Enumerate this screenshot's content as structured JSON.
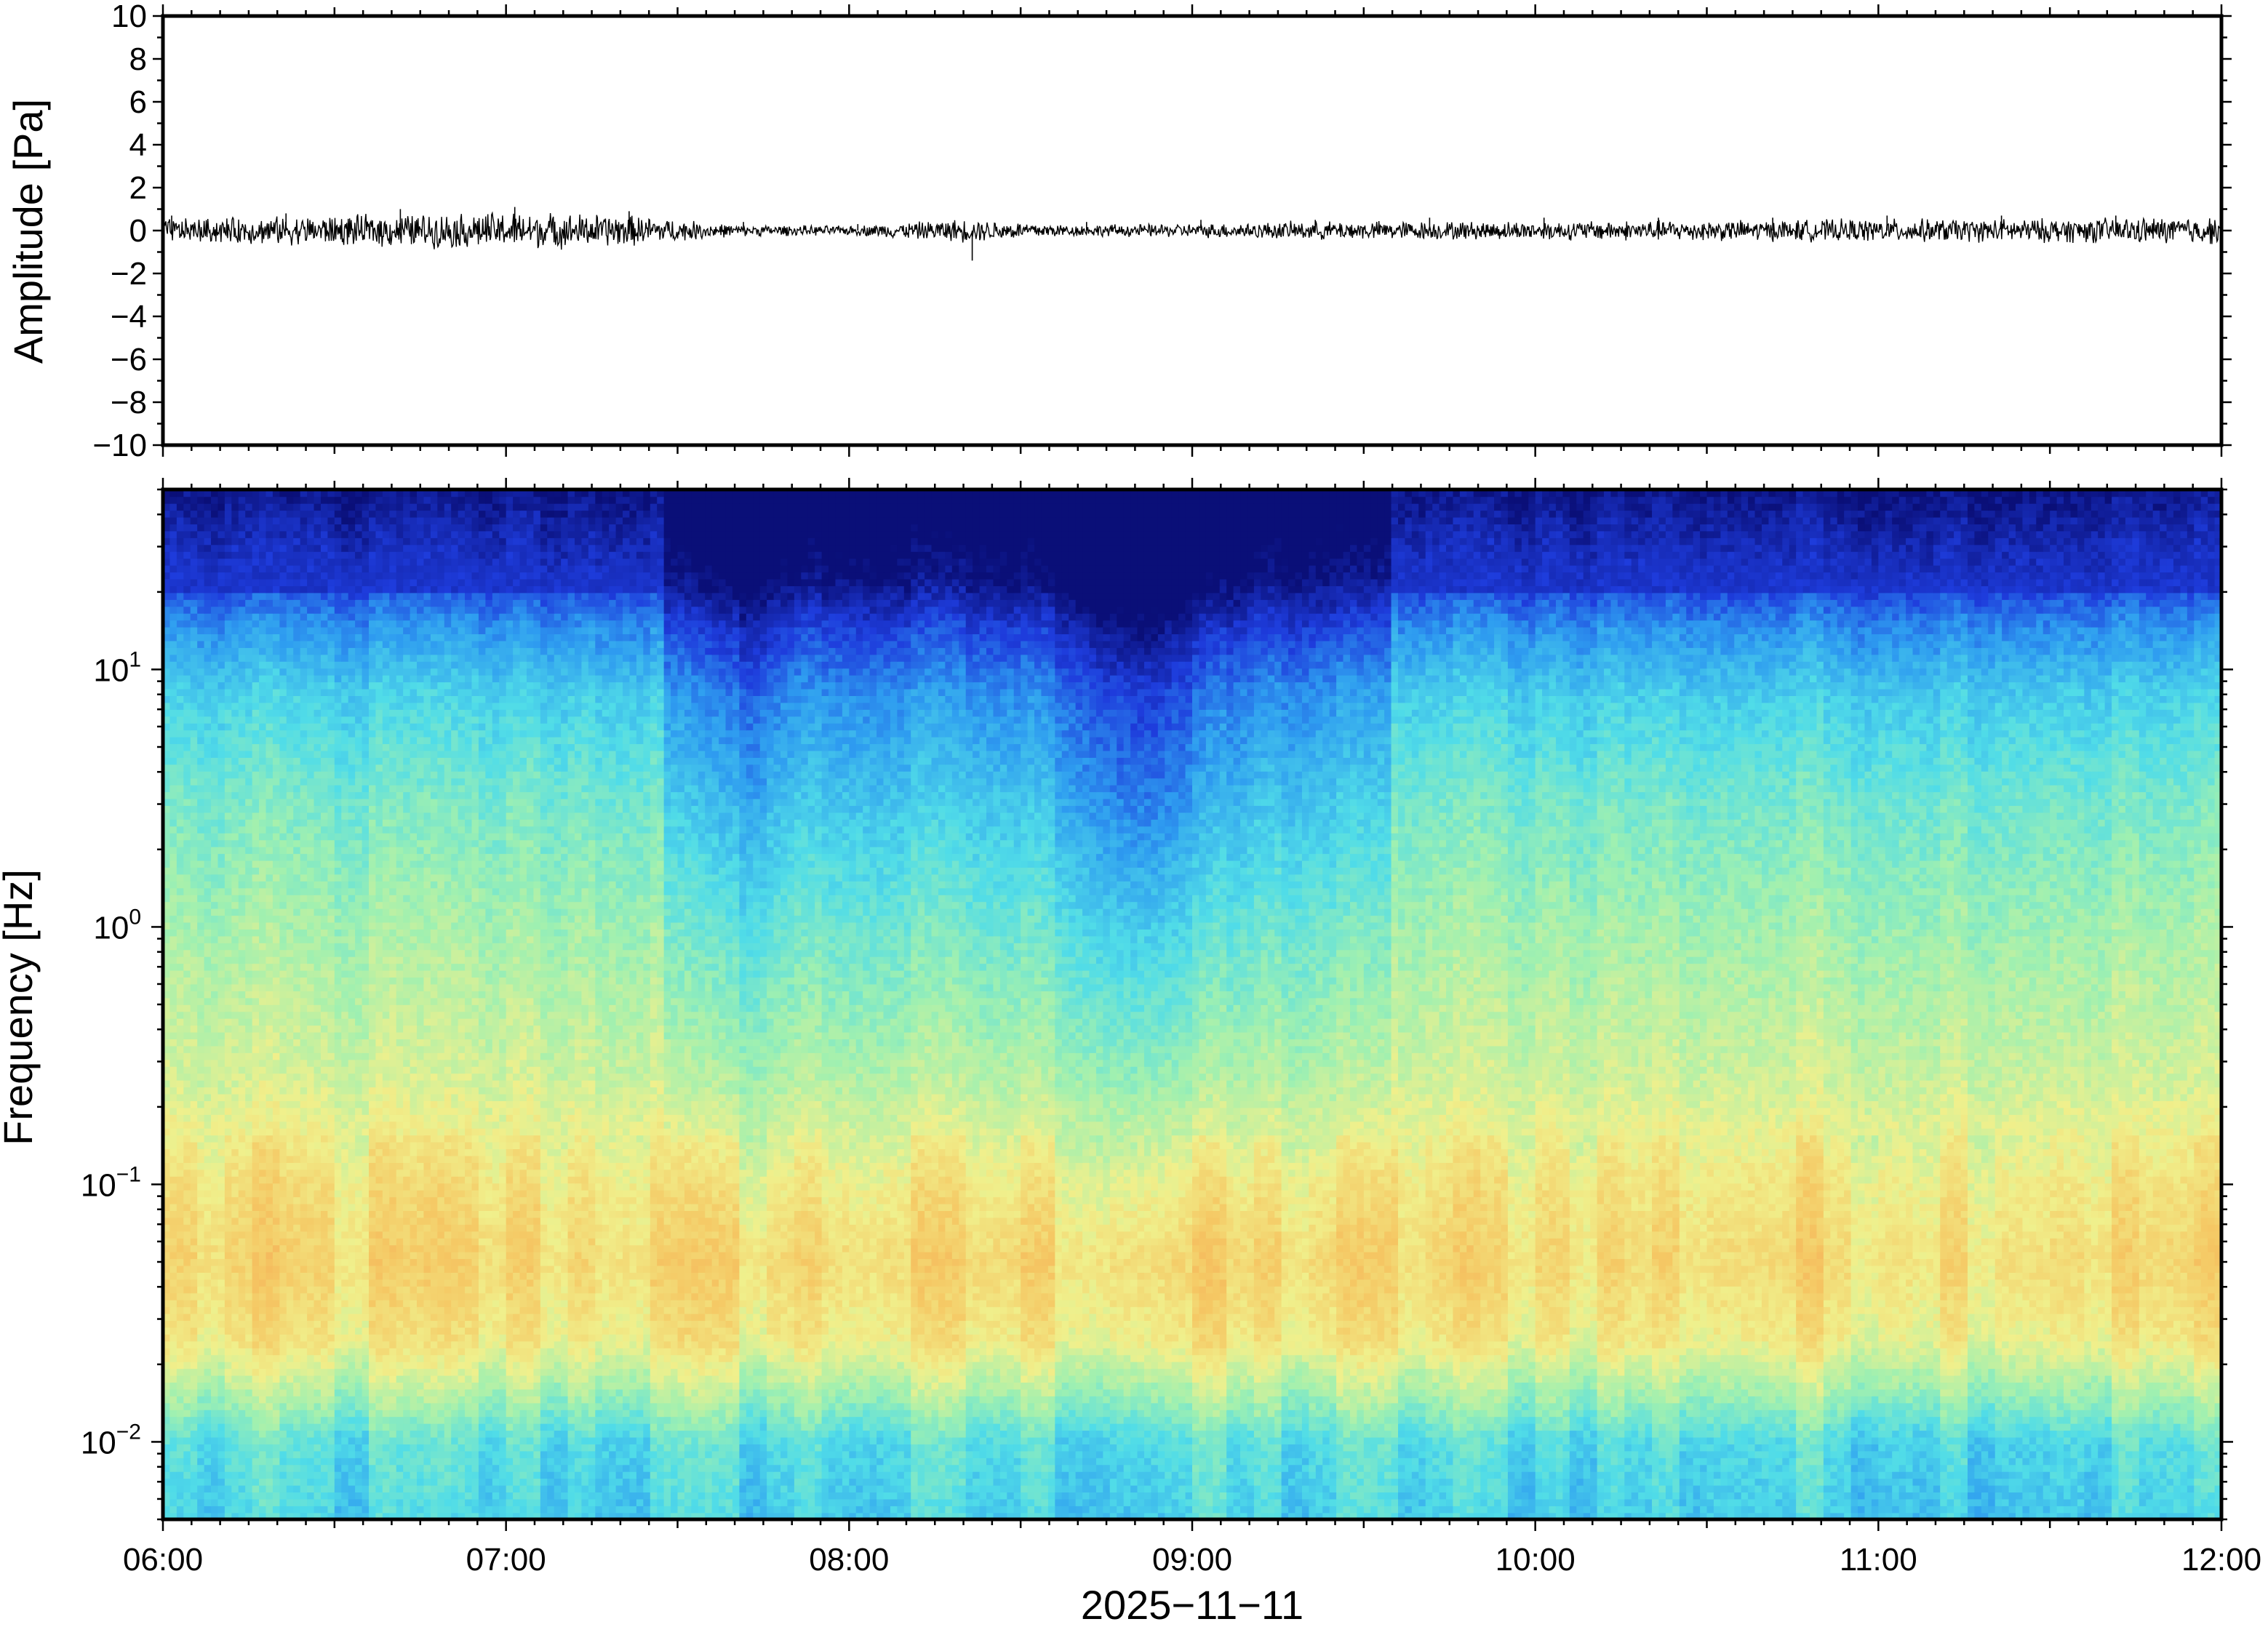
{
  "chart_data": [
    {
      "type": "line",
      "ylabel": "Amplitude [Pa]",
      "ylim": [
        -10,
        10
      ],
      "yticks": [
        -10,
        -8,
        -6,
        -4,
        -2,
        0,
        2,
        4,
        6,
        8,
        10
      ],
      "ytick_labels": [
        "−10",
        "−8",
        "−6",
        "−4",
        "−2",
        "0",
        "2",
        "4",
        "6",
        "8",
        "10"
      ],
      "xlim": [
        "2025-11-11 06:00",
        "2025-11-11 12:00"
      ],
      "grid": false,
      "series": [
        {
          "x": [
            "06:00",
            "06:20",
            "06:40",
            "07:00",
            "07:20",
            "07:40",
            "08:00",
            "08:20",
            "08:40",
            "09:00",
            "09:20",
            "09:40",
            "10:00",
            "10:20",
            "10:40",
            "11:00",
            "11:20",
            "11:40",
            "12:00"
          ],
          "envelope_pa": [
            0.5,
            0.6,
            0.7,
            0.8,
            0.7,
            0.25,
            0.2,
            0.5,
            0.25,
            0.3,
            0.4,
            0.4,
            0.4,
            0.45,
            0.45,
            0.5,
            0.5,
            0.55,
            0.6
          ],
          "peak_pa": [
            0.7,
            0.8,
            1.0,
            1.1,
            0.9,
            0.4,
            0.3,
            -1.4,
            0.4,
            0.5,
            0.5,
            0.6,
            0.6,
            0.6,
            0.6,
            0.7,
            0.7,
            0.7,
            0.9
          ]
        }
      ]
    },
    {
      "type": "heatmap",
      "ylabel": "Frequency [Hz]",
      "xlabel": "2025−11−11",
      "yscale": "log",
      "ylim": [
        0.005,
        50
      ],
      "yticks": [
        0.01,
        0.1,
        1,
        10
      ],
      "ytick_labels": [
        {
          "base": "10",
          "exp": "−2"
        },
        {
          "base": "10",
          "exp": "−1"
        },
        {
          "base": "10",
          "exp": "0"
        },
        {
          "base": "10",
          "exp": "1"
        }
      ],
      "xticks": [
        "06:00",
        "07:00",
        "08:00",
        "09:00",
        "10:00",
        "11:00",
        "12:00"
      ],
      "colormap": "jet-like (dark blue = low power, orange = high power)",
      "colors": [
        "#0a0f78",
        "#1e3cdc",
        "#2e9cf0",
        "#50dce8",
        "#a0f0b0",
        "#f0f08c",
        "#f5c864",
        "#f5a050"
      ],
      "description_of_pattern": "high frequencies (>20 Hz) dark blue; 0.03–1 Hz yellow/orange; lowest band (<0.015 Hz) cyan/blue; quieter (bluer) column band 07:30–09:30 with minimum near 08:50",
      "grid": false
    }
  ]
}
